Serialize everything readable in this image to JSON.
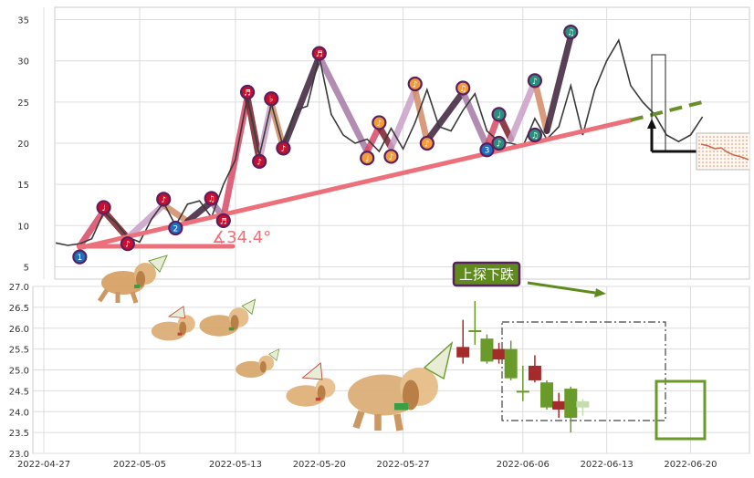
{
  "chart_data": [
    {
      "type": "line",
      "panel": "price",
      "ylim": [
        3.5,
        36.5
      ],
      "yticks": [
        "5",
        "10",
        "15",
        "20",
        "25",
        "30",
        "35"
      ],
      "grid": true,
      "series": [
        {
          "color": "#3a3a3a",
          "points": [
            {
              "x": "2022-04-28",
              "y": 7.9
            },
            {
              "x": "2022-04-29",
              "y": 7.6
            },
            {
              "x": "2022-04-30",
              "y": 7.8
            },
            {
              "x": "2022-05-01",
              "y": 8.4
            },
            {
              "x": "2022-05-02",
              "y": 11.6
            },
            {
              "x": "2022-05-03",
              "y": 10.4
            },
            {
              "x": "2022-05-04",
              "y": 8.6
            },
            {
              "x": "2022-05-05",
              "y": 8.0
            },
            {
              "x": "2022-05-06",
              "y": 10.8
            },
            {
              "x": "2022-05-07",
              "y": 12.8
            },
            {
              "x": "2022-05-08",
              "y": 10.0
            },
            {
              "x": "2022-05-09",
              "y": 12.6
            },
            {
              "x": "2022-05-10",
              "y": 13.0
            },
            {
              "x": "2022-05-11",
              "y": 11.0
            },
            {
              "x": "2022-05-12",
              "y": 15.0
            },
            {
              "x": "2022-05-13",
              "y": 18.0
            },
            {
              "x": "2022-05-14",
              "y": 25.6
            },
            {
              "x": "2022-05-15",
              "y": 18.5
            },
            {
              "x": "2022-05-16",
              "y": 24.8
            },
            {
              "x": "2022-05-17",
              "y": 19.5
            },
            {
              "x": "2022-05-18",
              "y": 24.0
            },
            {
              "x": "2022-05-19",
              "y": 24.5
            },
            {
              "x": "2022-05-20",
              "y": 30.5
            },
            {
              "x": "2022-05-21",
              "y": 23.5
            },
            {
              "x": "2022-05-22",
              "y": 21.0
            },
            {
              "x": "2022-05-23",
              "y": 20.0
            },
            {
              "x": "2022-05-24",
              "y": 20.5
            },
            {
              "x": "2022-05-25",
              "y": 19.0
            },
            {
              "x": "2022-05-26",
              "y": 21.8
            },
            {
              "x": "2022-05-27",
              "y": 19.3
            },
            {
              "x": "2022-05-28",
              "y": 22.5
            },
            {
              "x": "2022-05-29",
              "y": 26.5
            },
            {
              "x": "2022-05-30",
              "y": 22.0
            },
            {
              "x": "2022-05-31",
              "y": 21.5
            },
            {
              "x": "2022-06-01",
              "y": 24.0
            },
            {
              "x": "2022-06-02",
              "y": 26.0
            },
            {
              "x": "2022-06-03",
              "y": 21.5
            },
            {
              "x": "2022-06-04",
              "y": 20.2
            },
            {
              "x": "2022-06-05",
              "y": 20.0
            },
            {
              "x": "2022-06-06",
              "y": 19.6
            },
            {
              "x": "2022-06-07",
              "y": 23.0
            },
            {
              "x": "2022-06-08",
              "y": 20.5
            },
            {
              "x": "2022-06-09",
              "y": 22.0
            },
            {
              "x": "2022-06-10",
              "y": 27.0
            },
            {
              "x": "2022-06-11",
              "y": 21.0
            },
            {
              "x": "2022-06-12",
              "y": 26.5
            },
            {
              "x": "2022-06-13",
              "y": 30.0
            },
            {
              "x": "2022-06-14",
              "y": 32.5
            },
            {
              "x": "2022-06-15",
              "y": 27.0
            },
            {
              "x": "2022-06-16",
              "y": 25.0
            },
            {
              "x": "2022-06-17",
              "y": 23.5
            },
            {
              "x": "2022-06-18",
              "y": 21.0
            },
            {
              "x": "2022-06-19",
              "y": 20.2
            },
            {
              "x": "2022-06-20",
              "y": 21.0
            },
            {
              "x": "2022-06-21",
              "y": 23.2
            }
          ]
        }
      ],
      "zigzag_points": [
        {
          "x": "2022-04-30",
          "y": 7.5
        },
        {
          "x": "2022-05-02",
          "y": 11.8
        },
        {
          "x": "2022-05-04",
          "y": 8.5
        },
        {
          "x": "2022-05-07",
          "y": 12.5
        },
        {
          "x": "2022-05-09",
          "y": 10.5
        },
        {
          "x": "2022-05-11",
          "y": 12.9
        },
        {
          "x": "2022-05-12",
          "y": 11.0
        },
        {
          "x": "2022-05-14",
          "y": 25.6
        },
        {
          "x": "2022-05-15",
          "y": 18.0
        },
        {
          "x": "2022-05-16",
          "y": 24.8
        },
        {
          "x": "2022-05-17",
          "y": 19.5
        },
        {
          "x": "2022-05-20",
          "y": 30.5
        },
        {
          "x": "2022-05-24",
          "y": 19.0
        },
        {
          "x": "2022-05-25",
          "y": 22.0
        },
        {
          "x": "2022-05-26",
          "y": 19.5
        },
        {
          "x": "2022-05-28",
          "y": 26.5
        },
        {
          "x": "2022-05-29",
          "y": 20.3
        },
        {
          "x": "2022-06-01",
          "y": 26.2
        },
        {
          "x": "2022-06-03",
          "y": 19.6
        },
        {
          "x": "2022-06-04",
          "y": 23.5
        },
        {
          "x": "2022-06-05",
          "y": 20.5
        },
        {
          "x": "2022-06-07",
          "y": 27.5
        },
        {
          "x": "2022-06-08",
          "y": 21.5
        },
        {
          "x": "2022-06-10",
          "y": 33.0
        }
      ],
      "zigzag_colors": [
        "#d84a66",
        "#7a1f2b",
        "#c9a0c8",
        "#d28b66",
        "#3b1f3a",
        "#a47aa4"
      ],
      "trendline": {
        "x1": "2022-04-30",
        "y1": 7.3,
        "x2": "2022-06-15",
        "y2": 22.8,
        "color": "#ec6f7a"
      },
      "projection": {
        "x1": "2022-06-15",
        "y1": 22.8,
        "x2": "2022-06-21",
        "y2": 25.0,
        "color": "#6a8f2a"
      },
      "angle_label": "∡34.4°",
      "badges": [
        {
          "x": "2022-04-30",
          "y": 6.2,
          "glyph": "1",
          "fill": "#1f6fbf"
        },
        {
          "x": "2022-05-02",
          "y": 12.2,
          "glyph": "♩",
          "fill": "#c8102e"
        },
        {
          "x": "2022-05-04",
          "y": 7.8,
          "glyph": "♪",
          "fill": "#c8102e"
        },
        {
          "x": "2022-05-07",
          "y": 13.2,
          "glyph": "♪",
          "fill": "#c8102e"
        },
        {
          "x": "2022-05-08",
          "y": 9.7,
          "glyph": "2",
          "fill": "#1f6fbf"
        },
        {
          "x": "2022-05-11",
          "y": 13.3,
          "glyph": "♫",
          "fill": "#c8102e"
        },
        {
          "x": "2022-05-12",
          "y": 10.6,
          "glyph": "♬",
          "fill": "#c8102e"
        },
        {
          "x": "2022-05-14",
          "y": 26.2,
          "glyph": "♬",
          "fill": "#c8102e"
        },
        {
          "x": "2022-05-15",
          "y": 17.8,
          "glyph": "♪",
          "fill": "#c8102e"
        },
        {
          "x": "2022-05-16",
          "y": 25.4,
          "glyph": "♭",
          "fill": "#c8102e"
        },
        {
          "x": "2022-05-17",
          "y": 19.4,
          "glyph": "♪",
          "fill": "#c8102e"
        },
        {
          "x": "2022-05-20",
          "y": 30.9,
          "glyph": "♬",
          "fill": "#c8102e"
        },
        {
          "x": "2022-05-24",
          "y": 18.2,
          "glyph": "♩",
          "fill": "#f39a3a"
        },
        {
          "x": "2022-05-25",
          "y": 22.5,
          "glyph": "♪",
          "fill": "#f39a3a"
        },
        {
          "x": "2022-05-26",
          "y": 18.4,
          "glyph": "♪",
          "fill": "#f39a3a"
        },
        {
          "x": "2022-05-28",
          "y": 27.2,
          "glyph": "♪",
          "fill": "#f39a3a"
        },
        {
          "x": "2022-05-29",
          "y": 20.0,
          "glyph": "♪",
          "fill": "#f39a3a"
        },
        {
          "x": "2022-06-01",
          "y": 26.7,
          "glyph": "♫",
          "fill": "#f39a3a"
        },
        {
          "x": "2022-06-03",
          "y": 19.2,
          "glyph": "3",
          "fill": "#1f6fbf"
        },
        {
          "x": "2022-06-04",
          "y": 23.5,
          "glyph": "♩",
          "fill": "#2a8f7a"
        },
        {
          "x": "2022-06-04",
          "y": 20.0,
          "glyph": "♪",
          "fill": "#2a8f7a"
        },
        {
          "x": "2022-06-07",
          "y": 27.6,
          "glyph": "♪",
          "fill": "#2a8f7a"
        },
        {
          "x": "2022-06-07",
          "y": 21.0,
          "glyph": "♫",
          "fill": "#2a8f7a"
        },
        {
          "x": "2022-06-10",
          "y": 33.5,
          "glyph": "♫",
          "fill": "#2a8f7a"
        }
      ]
    },
    {
      "type": "candlestick",
      "panel": "detail",
      "ylim": [
        23.0,
        27.0
      ],
      "yticks": [
        "23.0",
        "23.5",
        "24.0",
        "24.5",
        "25.0",
        "25.5",
        "26.0",
        "26.5",
        "27.0"
      ],
      "xticks": [
        "2022-04-27",
        "2022-05-05",
        "2022-05-13",
        "2022-05-20",
        "2022-05-27",
        "2022-06-06",
        "2022-06-13",
        "2022-06-20"
      ],
      "grid": true,
      "candles": [
        {
          "x": "2022-06-01",
          "open": 25.3,
          "close": 25.55,
          "high": 26.2,
          "low": 25.15,
          "color": "#a52a2a"
        },
        {
          "x": "2022-06-02",
          "open": 25.95,
          "close": 25.95,
          "high": 26.65,
          "low": 25.6,
          "color": "#6a9a2a"
        },
        {
          "x": "2022-06-03",
          "open": 25.75,
          "close": 25.2,
          "high": 25.85,
          "low": 25.15,
          "color": "#6a9a2a"
        },
        {
          "x": "2022-06-04",
          "open": 25.25,
          "close": 25.5,
          "high": 25.65,
          "low": 25.15,
          "color": "#a52a2a"
        },
        {
          "x": "2022-06-05",
          "open": 25.5,
          "close": 24.8,
          "high": 25.7,
          "low": 24.75,
          "color": "#6a9a2a"
        },
        {
          "x": "2022-06-06",
          "open": 24.5,
          "close": 24.5,
          "high": 25.1,
          "low": 24.25,
          "color": "#6a9a2a"
        },
        {
          "x": "2022-06-07",
          "open": 24.75,
          "close": 25.1,
          "high": 25.35,
          "low": 24.7,
          "color": "#a52a2a"
        },
        {
          "x": "2022-06-08",
          "open": 24.7,
          "close": 24.1,
          "high": 24.75,
          "low": 24.05,
          "color": "#6a9a2a"
        },
        {
          "x": "2022-06-09",
          "open": 24.05,
          "close": 24.25,
          "high": 24.45,
          "low": 23.85,
          "color": "#a52a2a"
        },
        {
          "x": "2022-06-10",
          "open": 24.55,
          "close": 23.85,
          "high": 24.6,
          "low": 23.5,
          "color": "#6a9a2a"
        },
        {
          "x": "2022-06-11",
          "open": 24.25,
          "close": 24.1,
          "high": 24.3,
          "low": 23.9,
          "color": "#c5dcb0"
        }
      ],
      "annotation": {
        "text": "上探下跌",
        "bg": "#5f8a1e",
        "border": "#5a1f5f",
        "fg": "#ffffff"
      }
    }
  ]
}
